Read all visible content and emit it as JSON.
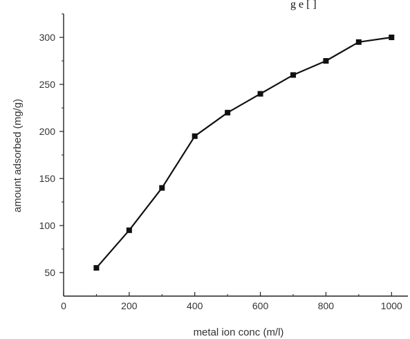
{
  "page": {
    "top_fragment": "g e [ ]"
  },
  "chart_data": {
    "type": "line",
    "title": "",
    "xlabel": "metal ion conc (m/l)",
    "ylabel": "amount adsorbed (mg/g)",
    "x": [
      100,
      200,
      300,
      400,
      500,
      600,
      700,
      800,
      900,
      1000
    ],
    "series": [
      {
        "values": [
          55,
          95,
          140,
          195,
          220,
          240,
          260,
          275,
          295,
          300
        ]
      }
    ],
    "xlim": [
      0,
      1050
    ],
    "ylim": [
      25,
      325
    ],
    "x_ticks": [
      0,
      200,
      400,
      600,
      800,
      1000
    ],
    "y_ticks": [
      50,
      100,
      150,
      200,
      250,
      300
    ],
    "x_tick_labels": [
      "0",
      "200",
      "400",
      "600",
      "800",
      "1000"
    ],
    "y_tick_labels": [
      "50",
      "100",
      "150",
      "200",
      "250",
      "300"
    ],
    "grid": false,
    "legend": "none",
    "colors": {
      "line": "#111111",
      "axis": "#222222",
      "tick_text": "#333333"
    },
    "marker": "square"
  }
}
